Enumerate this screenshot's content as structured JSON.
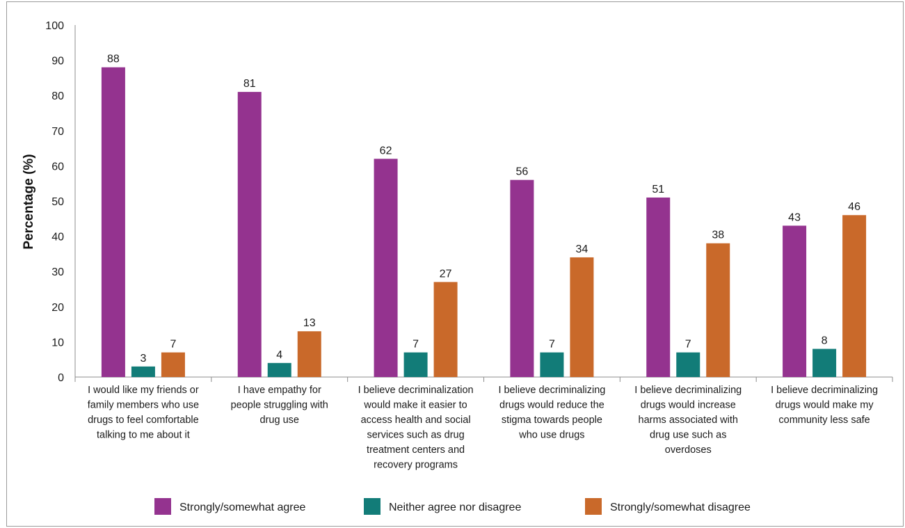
{
  "chart_data": {
    "type": "bar",
    "ylabel": "Percentage (%)",
    "xlabel": "",
    "ylim": [
      0,
      100
    ],
    "yticks": [
      "0",
      "10",
      "20",
      "30",
      "40",
      "50",
      "60",
      "70",
      "80",
      "90",
      "100"
    ],
    "grid": false,
    "legend_position": "bottom",
    "categories": [
      [
        "I would like my friends or",
        "family members who use",
        "drugs to feel comfortable",
        "talking to me about it"
      ],
      [
        "I have empathy for",
        "people struggling with",
        "drug use"
      ],
      [
        "I believe decriminalization",
        "would make it easier to",
        "access health and social",
        "services such as drug",
        "treatment centers and",
        "recovery programs"
      ],
      [
        "I believe decriminalizing",
        "drugs would reduce the",
        "stigma towards people",
        "who use drugs"
      ],
      [
        "I believe decriminalizing",
        "drugs would increase",
        "harms associated with",
        "drug use such as",
        "overdoses"
      ],
      [
        "I believe decriminalizing",
        "drugs would make my",
        "community less safe"
      ]
    ],
    "series": [
      {
        "name": "Strongly/somewhat agree",
        "color": "#94338f",
        "values": [
          88,
          81,
          62,
          56,
          51,
          43
        ]
      },
      {
        "name": "Neither agree nor disagree",
        "color": "#127c78",
        "values": [
          3,
          4,
          7,
          7,
          7,
          8
        ]
      },
      {
        "name": "Strongly/somewhat disagree",
        "color": "#c9692a",
        "values": [
          7,
          13,
          27,
          34,
          38,
          46
        ]
      }
    ]
  }
}
